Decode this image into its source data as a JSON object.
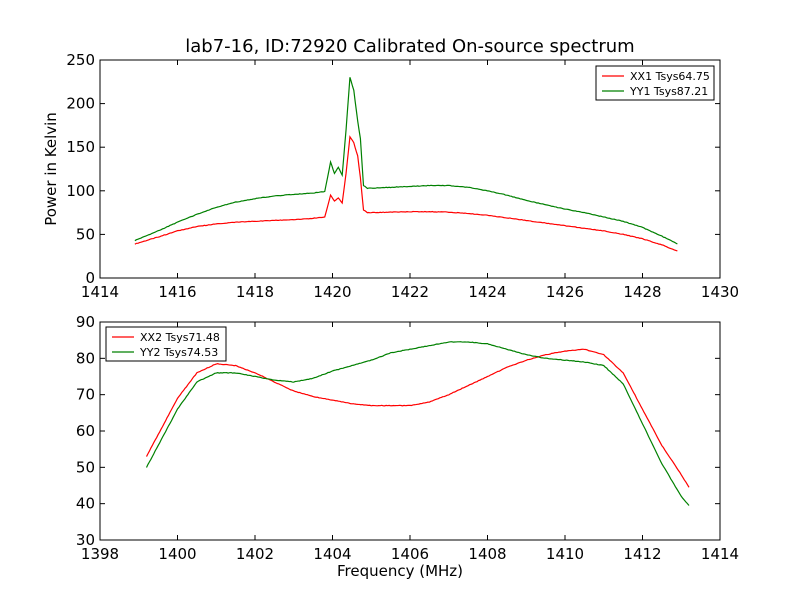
{
  "figure": {
    "title": "lab7-16, ID:72920 Calibrated On-source spectrum"
  },
  "chart_data": [
    {
      "type": "line",
      "name": "top-panel",
      "title": "lab7-16, ID:72920 Calibrated On-source spectrum",
      "xlabel": "",
      "ylabel": "Power in Kelvin",
      "xlim": [
        1414,
        1430
      ],
      "ylim": [
        0,
        250
      ],
      "xticks": [
        1414,
        1416,
        1418,
        1420,
        1422,
        1424,
        1426,
        1428,
        1430
      ],
      "yticks": [
        0,
        50,
        100,
        150,
        200,
        250
      ],
      "legend_position": "top-right",
      "series": [
        {
          "name": "XX1 Tsys64.75",
          "color": "#ff0000",
          "x": [
            1414.9,
            1415.5,
            1416,
            1416.5,
            1417,
            1417.5,
            1418,
            1418.5,
            1419,
            1419.5,
            1419.8,
            1419.95,
            1420.05,
            1420.15,
            1420.25,
            1420.35,
            1420.45,
            1420.55,
            1420.65,
            1420.72,
            1420.8,
            1420.9,
            1421,
            1421.5,
            1422,
            1422.5,
            1423,
            1423.5,
            1424,
            1424.5,
            1425,
            1425.5,
            1426,
            1426.5,
            1427,
            1427.5,
            1428,
            1428.5,
            1428.9
          ],
          "y": [
            39,
            47,
            54,
            59,
            62,
            64,
            65,
            66,
            67,
            68.5,
            70,
            95,
            88,
            92,
            86,
            120,
            162,
            155,
            140,
            115,
            78,
            75,
            75,
            75.5,
            76,
            76,
            75.5,
            74,
            72,
            69,
            66,
            63,
            60,
            57,
            54,
            50,
            45,
            38,
            31
          ]
        },
        {
          "name": "YY1 Tsys87.21",
          "color": "#008000",
          "x": [
            1414.9,
            1415.5,
            1416,
            1416.5,
            1417,
            1417.5,
            1418,
            1418.5,
            1419,
            1419.5,
            1419.8,
            1419.95,
            1420.05,
            1420.15,
            1420.25,
            1420.35,
            1420.45,
            1420.55,
            1420.65,
            1420.72,
            1420.8,
            1420.9,
            1421,
            1421.5,
            1422,
            1422.5,
            1423,
            1423.5,
            1424,
            1424.5,
            1425,
            1425.5,
            1426,
            1426.5,
            1427,
            1427.5,
            1428,
            1428.5,
            1428.9
          ],
          "y": [
            43,
            54,
            64,
            73,
            81,
            87,
            91,
            94,
            96,
            97.5,
            99,
            133,
            120,
            127,
            118,
            170,
            230,
            215,
            180,
            160,
            106,
            103,
            103,
            104,
            105,
            106,
            106,
            104,
            100,
            95,
            89,
            84,
            79,
            75,
            70,
            65,
            58,
            48,
            39
          ]
        }
      ]
    },
    {
      "type": "line",
      "name": "bottom-panel",
      "title": "",
      "xlabel": "Frequency (MHz)",
      "ylabel": "",
      "xlim": [
        1398,
        1414
      ],
      "ylim": [
        30,
        90
      ],
      "xticks": [
        1398,
        1400,
        1402,
        1404,
        1406,
        1408,
        1410,
        1412,
        1414
      ],
      "yticks": [
        30,
        40,
        50,
        60,
        70,
        80,
        90
      ],
      "legend_position": "top-left",
      "series": [
        {
          "name": "XX2 Tsys71.48",
          "color": "#ff0000",
          "x": [
            1399.2,
            1399.5,
            1400,
            1400.5,
            1401,
            1401.5,
            1402,
            1402.5,
            1403,
            1403.5,
            1404,
            1404.5,
            1405,
            1405.5,
            1406,
            1406.5,
            1407,
            1407.5,
            1408,
            1408.5,
            1409,
            1409.5,
            1410,
            1410.5,
            1411,
            1411.5,
            1412,
            1412.5,
            1413,
            1413.2
          ],
          "y": [
            53,
            59,
            69,
            76,
            78.5,
            78,
            76,
            73.5,
            71,
            69.5,
            68.5,
            67.5,
            67,
            67,
            67,
            68,
            70,
            72.5,
            75,
            77.5,
            79.5,
            81,
            82,
            82.5,
            81,
            76,
            66,
            56,
            48,
            44.5
          ]
        },
        {
          "name": "YY2 Tsys74.53",
          "color": "#008000",
          "x": [
            1399.2,
            1399.5,
            1400,
            1400.5,
            1401,
            1401.5,
            1402,
            1402.5,
            1403,
            1403.5,
            1404,
            1404.5,
            1405,
            1405.5,
            1406,
            1406.5,
            1407,
            1407.5,
            1408,
            1408.5,
            1409,
            1409.5,
            1410,
            1410.5,
            1411,
            1411.5,
            1412,
            1412.5,
            1413,
            1413.2
          ],
          "y": [
            50,
            56,
            66,
            73.5,
            76,
            76,
            75,
            74,
            73.5,
            74.5,
            76.5,
            78,
            79.5,
            81.5,
            82.5,
            83.5,
            84.5,
            84.5,
            84,
            82.5,
            81,
            80,
            79.5,
            79,
            78,
            73,
            62,
            51,
            42,
            39.5
          ]
        }
      ]
    }
  ]
}
